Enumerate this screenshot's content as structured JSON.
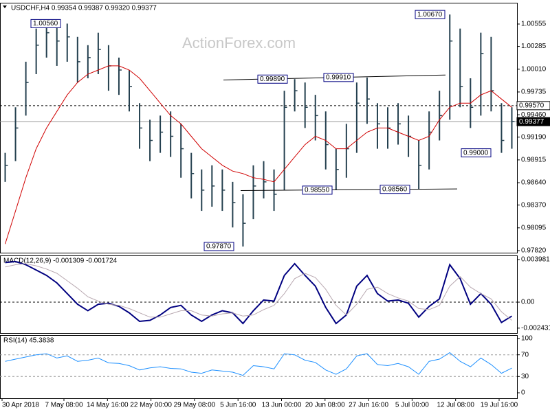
{
  "chart_data": [
    {
      "type": "ohlc",
      "title": "USDCHF,H4  0.99354 0.99387 0.99320 0.99377",
      "watermark": "ActionForex.com",
      "color": "#24404f",
      "high": [
        0.99,
        0.9955,
        1.001,
        1.005,
        1.0056,
        1.0055,
        1.0056,
        1.004,
        1.003,
        1.0045,
        1.003,
        1.0015,
        1.0,
        0.996,
        0.994,
        0.9945,
        0.995,
        0.9935,
        0.99,
        0.988,
        0.9885,
        0.988,
        0.9865,
        0.985,
        0.9885,
        0.989,
        0.988,
        0.9975,
        0.9989,
        0.9985,
        0.997,
        0.995,
        0.9905,
        0.9935,
        0.9985,
        0.9991,
        0.996,
        0.9955,
        0.996,
        0.9945,
        0.9915,
        0.995,
        0.9975,
        1.0067,
        1.005,
        0.999,
        1.0045,
        1.004,
        0.996,
        0.9955
      ],
      "low": [
        0.9865,
        0.989,
        0.9945,
        0.9995,
        1.0015,
        1.0005,
        1.001,
        0.9985,
        0.999,
        0.9995,
        0.9975,
        0.997,
        0.995,
        0.9905,
        0.989,
        0.99,
        0.9895,
        0.987,
        0.9845,
        0.983,
        0.9835,
        0.983,
        0.981,
        0.9787,
        0.982,
        0.9845,
        0.983,
        0.9855,
        0.995,
        0.993,
        0.9915,
        0.988,
        0.9855,
        0.987,
        0.99,
        0.9935,
        0.9905,
        0.9905,
        0.991,
        0.9895,
        0.9856,
        0.988,
        0.9915,
        0.994,
        0.9955,
        0.993,
        0.9945,
        0.995,
        0.99,
        0.9905
      ],
      "close": [
        0.9885,
        0.993,
        0.9985,
        1.003,
        1.0045,
        1.0035,
        1.004,
        1.001,
        1.0015,
        1.0025,
        1.0005,
        1.0,
        0.998,
        0.993,
        0.9915,
        0.9925,
        0.992,
        0.9905,
        0.9875,
        0.9855,
        0.986,
        0.9855,
        0.984,
        0.9815,
        0.986,
        0.9865,
        0.985,
        0.9955,
        0.9975,
        0.9955,
        0.9945,
        0.991,
        0.988,
        0.9905,
        0.996,
        0.9965,
        0.9935,
        0.993,
        0.9935,
        0.992,
        0.9885,
        0.9925,
        0.9945,
        1.0035,
        0.998,
        0.9955,
        1.002,
        0.9975,
        0.9915,
        0.99377
      ],
      "ma": {
        "color": "#d00000",
        "values": [
          0.979,
          0.983,
          0.987,
          0.9905,
          0.993,
          0.995,
          0.997,
          0.9985,
          0.9995,
          1.0,
          1.0005,
          1.0005,
          1.0,
          0.999,
          0.9975,
          0.996,
          0.9945,
          0.9935,
          0.992,
          0.9905,
          0.9895,
          0.9885,
          0.9878,
          0.9875,
          0.987,
          0.9868,
          0.9865,
          0.988,
          0.9895,
          0.991,
          0.992,
          0.9915,
          0.9905,
          0.9905,
          0.9915,
          0.9925,
          0.993,
          0.993,
          0.9925,
          0.992,
          0.9915,
          0.992,
          0.994,
          0.9955,
          0.996,
          0.996,
          0.997,
          0.9975,
          0.9965,
          0.9955
        ]
      },
      "ylim": [
        0.97795,
        1.00812
      ],
      "yticks": [
        {
          "value": 1.00555,
          "label": "1.00555"
        },
        {
          "value": 1.00285,
          "label": "1.00285"
        },
        {
          "value": 1.0001,
          "label": "1.00010"
        },
        {
          "value": 0.99735,
          "label": "0.99735"
        },
        {
          "value": 0.9946,
          "label": "0.99460"
        },
        {
          "value": 0.9919,
          "label": "0.99190"
        },
        {
          "value": 0.98915,
          "label": "0.98915"
        },
        {
          "value": 0.9864,
          "label": "0.98640"
        },
        {
          "value": 0.9837,
          "label": "0.98370"
        },
        {
          "value": 0.98095,
          "label": "0.98095"
        },
        {
          "value": 0.9782,
          "label": "0.97820"
        }
      ],
      "levels": [
        {
          "value": 0.9957,
          "label": "0.99570",
          "style": "dashed"
        },
        {
          "value": 0.99377,
          "label": "0.99377",
          "style": "current"
        }
      ],
      "trendlines": [
        {
          "values": [
            0.9988,
            0.9994
          ]
        },
        {
          "values": [
            0.98545,
            0.98565
          ]
        }
      ],
      "annotations": [
        {
          "value": 1.0056,
          "label": "1.00560"
        },
        {
          "value": 1.0067,
          "label": "1.00670"
        },
        {
          "value": 0.9989,
          "label": "0.99890"
        },
        {
          "value": 0.9991,
          "label": "0.99910"
        },
        {
          "value": 0.9855,
          "label": "0.98550"
        },
        {
          "value": 0.9856,
          "label": "0.98560"
        },
        {
          "value": 0.9787,
          "label": "0.97870"
        },
        {
          "value": 0.99,
          "label": "0.99000"
        }
      ]
    },
    {
      "type": "line",
      "title": "MACD(12,26,9) -0.001309 -0.001724",
      "series": [
        {
          "color": "#000080",
          "line_width": 2,
          "values": [
            0.0037,
            0.0038,
            0.0035,
            0.003,
            0.0025,
            0.0018,
            0.0008,
            -0.0002,
            -0.0008,
            -0.0002,
            -0.0001,
            -0.0004,
            -0.001,
            -0.0018,
            -0.0017,
            -0.0012,
            -0.0005,
            -0.0003,
            -0.0012,
            -0.0018,
            -0.0012,
            -0.0008,
            -0.001,
            -0.002,
            -0.0008,
            0.0002,
            0.0001,
            0.0025,
            0.0036,
            0.0025,
            0.0015,
            -0.0005,
            -0.002,
            -0.0012,
            0.0015,
            0.0025,
            0.0008,
            0.0001,
            0.0002,
            -0.0001,
            -0.0014,
            -0.0004,
            0.0003,
            0.0035,
            0.0022,
            -0.0002,
            0.0008,
            -0.0002,
            -0.0019,
            -0.0013
          ]
        },
        {
          "color": "#b8a8b0",
          "line_width": 1,
          "values": [
            0.0033,
            0.0035,
            0.0036,
            0.0034,
            0.0031,
            0.0027,
            0.002,
            0.0013,
            0.0005,
            0.0001,
            -0.0002,
            -0.0003,
            -0.0006,
            -0.001,
            -0.0014,
            -0.0014,
            -0.0011,
            -0.0008,
            -0.0008,
            -0.0012,
            -0.0013,
            -0.0011,
            -0.001,
            -0.0013,
            -0.0012,
            -0.0007,
            -0.0003,
            0.0008,
            0.0022,
            0.0027,
            0.0023,
            0.0012,
            -0.0003,
            -0.0012,
            -0.0002,
            0.0012,
            0.0014,
            0.0008,
            0.0004,
            0.0001,
            -0.0006,
            -0.0007,
            -0.0003,
            0.0015,
            0.0024,
            0.0014,
            0.0008,
            0.0003,
            -0.0009,
            -0.0017
          ]
        }
      ],
      "ylim": [
        -0.00289,
        0.00437
      ],
      "yticks": [
        0.003981,
        {
          "value": 0,
          "label": "0.00"
        },
        -0.002431
      ],
      "levels": [
        0
      ]
    },
    {
      "type": "line",
      "title": "RSI(14) 45.3838",
      "series": [
        {
          "color": "#1e90ff",
          "line_width": 1,
          "values": [
            58,
            62,
            66,
            70,
            72,
            64,
            68,
            58,
            60,
            64,
            55,
            54,
            50,
            42,
            46,
            48,
            45,
            44,
            38,
            36,
            42,
            40,
            38,
            32,
            50,
            48,
            44,
            72,
            70,
            60,
            56,
            42,
            34,
            44,
            68,
            72,
            52,
            50,
            54,
            48,
            34,
            58,
            62,
            74,
            58,
            48,
            64,
            52,
            36,
            45.38
          ]
        }
      ],
      "ylim": [
        -10.1,
        106.3
      ],
      "yticks": [
        100,
        70,
        30,
        0
      ],
      "levels": [
        70,
        30
      ],
      "xtick_labels": [
        "30 Apr 2018",
        "7 May 08:00",
        "14 May 16:00",
        "22 May 00:00",
        "29 May 08:00",
        "5 Jun 16:00",
        "13 Jun 00:00",
        "20 Jun 08:00",
        "27 Jun 16:00",
        "5 Jul 00:00",
        "12 Jul 08:00",
        "19 Jul 16:00"
      ]
    }
  ]
}
